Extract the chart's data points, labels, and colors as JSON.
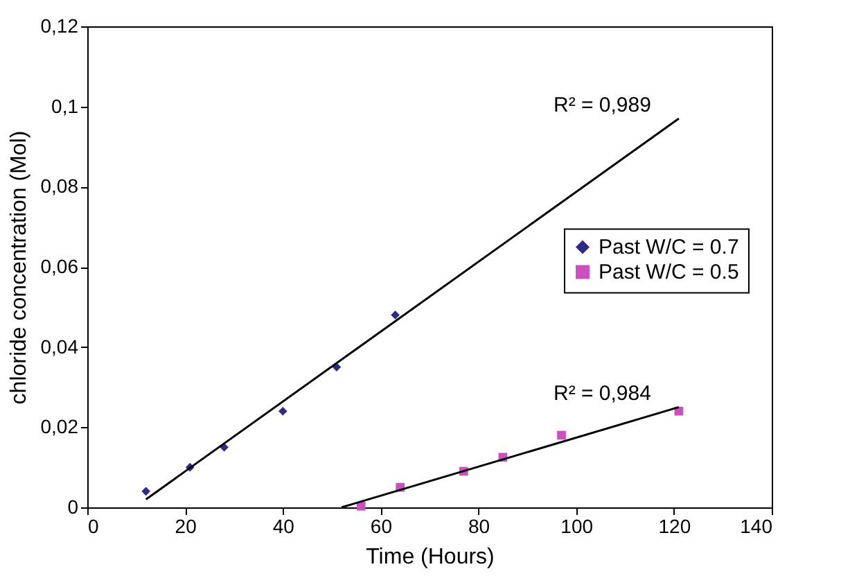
{
  "chart_data": {
    "type": "scatter",
    "xlabel": "Time (Hours)",
    "ylabel": "chloride concentration (Mol)",
    "xlim": [
      0,
      140
    ],
    "xticks": [
      0,
      20,
      40,
      60,
      80,
      100,
      120,
      140
    ],
    "ylim": [
      0,
      0.12
    ],
    "yticks": [
      {
        "value": 0,
        "label": "0"
      },
      {
        "value": 0.02,
        "label": "0,02"
      },
      {
        "value": 0.04,
        "label": "0,04"
      },
      {
        "value": 0.06,
        "label": "0,06"
      },
      {
        "value": 0.08,
        "label": "0,08"
      },
      {
        "value": 0.1,
        "label": "0,1"
      },
      {
        "value": 0.12,
        "label": "0,12"
      }
    ],
    "grid": false,
    "legend": "right",
    "series": [
      {
        "name": "Past W/C = 0.7",
        "color": "#2e2a8c",
        "marker": "diamond",
        "x": [
          12,
          21,
          28,
          40,
          51,
          63
        ],
        "values": [
          0.004,
          0.01,
          0.015,
          0.024,
          0.035,
          0.048
        ]
      },
      {
        "name": "Past W/C = 0.5",
        "color": "#cc4fc0",
        "marker": "square",
        "x": [
          56,
          64,
          77,
          85,
          97,
          121
        ],
        "values": [
          0.0003,
          0.005,
          0.009,
          0.0125,
          0.018,
          0.024
        ]
      },
      {
        "type": "line",
        "color": "#000000",
        "x": [
          12,
          121
        ],
        "values": [
          0.002,
          0.097
        ]
      },
      {
        "type": "line",
        "color": "#000000",
        "x": [
          52,
          121
        ],
        "values": [
          0,
          0.025
        ]
      }
    ],
    "annotations": [
      {
        "text": "R² = 0,989",
        "x": 121,
        "y": 0.097
      },
      {
        "text": "R² = 0,984",
        "x": 121,
        "y": 0.025
      }
    ]
  }
}
